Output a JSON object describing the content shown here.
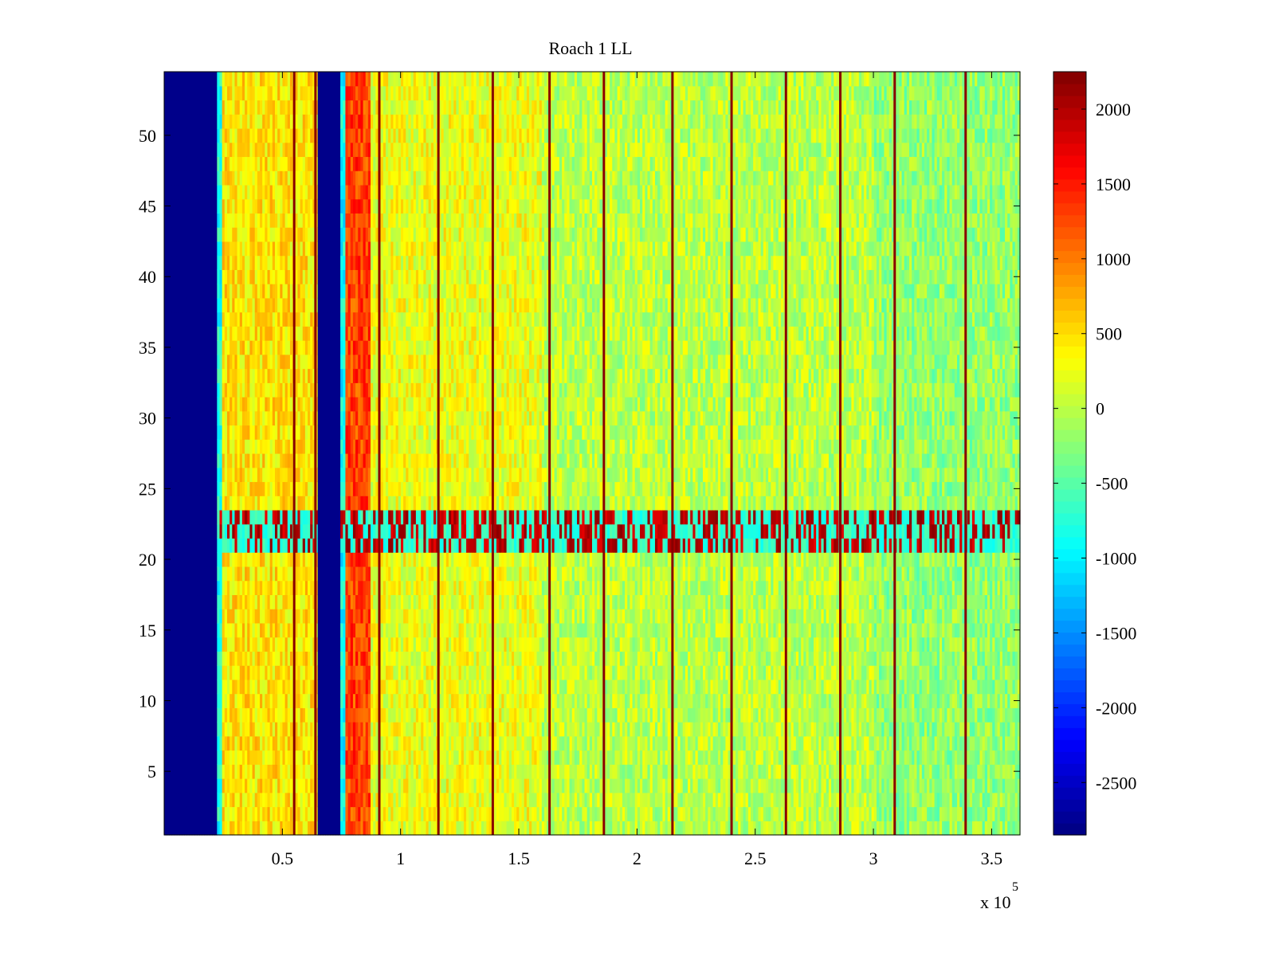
{
  "chart_data": {
    "type": "heatmap",
    "title": "Roach 1 LL",
    "xlabel": "",
    "ylabel": "",
    "x_multiplier_label": "x 10",
    "x_multiplier_exponent": "5",
    "xlim": [
      0.0,
      3.62
    ],
    "ylim": [
      0.5,
      54.5
    ],
    "x_ticks": [
      0.5,
      1,
      1.5,
      2,
      2.5,
      3,
      3.5
    ],
    "x_tick_labels": [
      "0.5",
      "1",
      "1.5",
      "2",
      "2.5",
      "3",
      "3.5"
    ],
    "y_ticks": [
      5,
      10,
      15,
      20,
      25,
      30,
      35,
      40,
      45,
      50
    ],
    "y_tick_labels": [
      "5",
      "10",
      "15",
      "20",
      "25",
      "30",
      "35",
      "40",
      "45",
      "50"
    ],
    "colorbar": {
      "colormap": "jet",
      "clim": [
        -2850,
        2250
      ],
      "ticks": [
        2000,
        1500,
        1000,
        500,
        0,
        -500,
        -1000,
        -1500,
        -2000,
        -2500
      ],
      "tick_labels": [
        "2000",
        "1500",
        "1000",
        "500",
        "0",
        "-500",
        "-1000",
        "-1500",
        "-2000",
        "-2500"
      ]
    },
    "rows": 54,
    "baseline_value": 0,
    "bands": [
      {
        "x_from": 0.0,
        "x_to": 0.22,
        "value": -2800
      },
      {
        "x_from": 0.22,
        "x_to": 0.25,
        "value": -800
      },
      {
        "x_from": 0.25,
        "x_to": 0.65,
        "value": 450
      },
      {
        "x_from": 0.65,
        "x_to": 0.75,
        "value": -2800
      },
      {
        "x_from": 0.75,
        "x_to": 0.77,
        "value": -900
      },
      {
        "x_from": 0.77,
        "x_to": 0.87,
        "value": 1300
      },
      {
        "x_from": 0.87,
        "x_to": 1.6,
        "value": 250
      },
      {
        "x_from": 1.6,
        "x_to": 3.0,
        "value": 0
      },
      {
        "x_from": 3.0,
        "x_to": 3.62,
        "value": -200
      }
    ],
    "vertical_lines": [
      {
        "x": 0.55,
        "value": 2200
      },
      {
        "x": 0.64,
        "value": 2200
      },
      {
        "x": 0.91,
        "value": 2200
      },
      {
        "x": 1.16,
        "value": 2200
      },
      {
        "x": 1.39,
        "value": 2200
      },
      {
        "x": 1.63,
        "value": 2200
      },
      {
        "x": 1.86,
        "value": 2200
      },
      {
        "x": 2.15,
        "value": 2200
      },
      {
        "x": 2.4,
        "value": 2200
      },
      {
        "x": 2.63,
        "value": 2200
      },
      {
        "x": 2.86,
        "value": 2200
      },
      {
        "x": 3.09,
        "value": 2200
      },
      {
        "x": 3.39,
        "value": 2200
      }
    ],
    "anomaly_rows": {
      "y_from": 20.7,
      "y_to": 23.6,
      "value_low": -900,
      "value_high": 2200
    }
  }
}
